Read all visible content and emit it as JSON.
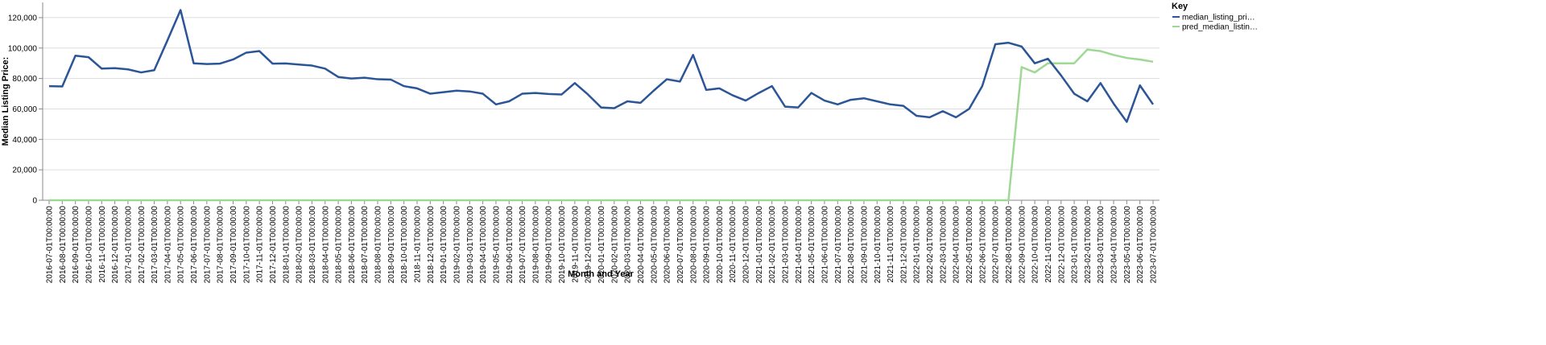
{
  "chart_data": {
    "type": "line",
    "x_label": "Month and Year",
    "y_label": "Median Listing Price:",
    "legend_title": "Key",
    "legend_position": "right",
    "grid": true,
    "categories": [
      "2016-07-01T00:00:00",
      "2016-08-01T00:00:00",
      "2016-09-01T00:00:00",
      "2016-10-01T00:00:00",
      "2016-11-01T00:00:00",
      "2016-12-01T00:00:00",
      "2017-01-01T00:00:00",
      "2017-02-01T00:00:00",
      "2017-03-01T00:00:00",
      "2017-04-01T00:00:00",
      "2017-05-01T00:00:00",
      "2017-06-01T00:00:00",
      "2017-07-01T00:00:00",
      "2017-08-01T00:00:00",
      "2017-09-01T00:00:00",
      "2017-10-01T00:00:00",
      "2017-11-01T00:00:00",
      "2017-12-01T00:00:00",
      "2018-01-01T00:00:00",
      "2018-02-01T00:00:00",
      "2018-03-01T00:00:00",
      "2018-04-01T00:00:00",
      "2018-05-01T00:00:00",
      "2018-06-01T00:00:00",
      "2018-07-01T00:00:00",
      "2018-08-01T00:00:00",
      "2018-09-01T00:00:00",
      "2018-10-01T00:00:00",
      "2018-11-01T00:00:00",
      "2018-12-01T00:00:00",
      "2019-01-01T00:00:00",
      "2019-02-01T00:00:00",
      "2019-03-01T00:00:00",
      "2019-04-01T00:00:00",
      "2019-05-01T00:00:00",
      "2019-06-01T00:00:00",
      "2019-07-01T00:00:00",
      "2019-08-01T00:00:00",
      "2019-09-01T00:00:00",
      "2019-10-01T00:00:00",
      "2019-11-01T00:00:00",
      "2019-12-01T00:00:00",
      "2020-01-01T00:00:00",
      "2020-02-01T00:00:00",
      "2020-03-01T00:00:00",
      "2020-04-01T00:00:00",
      "2020-05-01T00:00:00",
      "2020-06-01T00:00:00",
      "2020-07-01T00:00:00",
      "2020-08-01T00:00:00",
      "2020-09-01T00:00:00",
      "2020-10-01T00:00:00",
      "2020-11-01T00:00:00",
      "2020-12-01T00:00:00",
      "2021-01-01T00:00:00",
      "2021-02-01T00:00:00",
      "2021-03-01T00:00:00",
      "2021-04-01T00:00:00",
      "2021-05-01T00:00:00",
      "2021-06-01T00:00:00",
      "2021-07-01T00:00:00",
      "2021-08-01T00:00:00",
      "2021-09-01T00:00:00",
      "2021-10-01T00:00:00",
      "2021-11-01T00:00:00",
      "2021-12-01T00:00:00",
      "2022-01-01T00:00:00",
      "2022-02-01T00:00:00",
      "2022-03-01T00:00:00",
      "2022-04-01T00:00:00",
      "2022-05-01T00:00:00",
      "2022-06-01T00:00:00",
      "2022-07-01T00:00:00",
      "2022-08-01T00:00:00",
      "2022-09-01T00:00:00",
      "2022-10-01T00:00:00",
      "2022-11-01T00:00:00",
      "2022-12-01T00:00:00",
      "2023-01-01T00:00:00",
      "2023-02-01T00:00:00",
      "2023-03-01T00:00:00",
      "2023-04-01T00:00:00",
      "2023-05-01T00:00:00",
      "2023-06-01T00:00:00",
      "2023-07-01T00:00:00"
    ],
    "series": [
      {
        "name": "median_listing_pri…",
        "color": "#2b5597",
        "values": [
          75000,
          74800,
          95000,
          94000,
          86500,
          86800,
          86000,
          84000,
          85500,
          105000,
          125000,
          90000,
          89500,
          89800,
          92500,
          97000,
          98000,
          89800,
          89900,
          89200,
          88500,
          86500,
          81000,
          80000,
          80500,
          79500,
          79300,
          75000,
          73500,
          70000,
          71000,
          72000,
          71500,
          70000,
          63000,
          65000,
          70000,
          70500,
          69800,
          69500,
          77000,
          69500,
          61000,
          60500,
          65000,
          64000,
          72000,
          79500,
          78000,
          95500,
          72500,
          73500,
          69000,
          65500,
          70500,
          75000,
          61500,
          61000,
          70500,
          65500,
          63000,
          66000,
          67000,
          65000,
          63000,
          62000,
          55500,
          54500,
          58500,
          54500,
          60000,
          75000,
          102500,
          103500,
          101000,
          90000,
          93000,
          82000,
          70000,
          65000,
          77000,
          63500,
          51500,
          75500,
          63000
        ]
      },
      {
        "name": "pred_median_listin…",
        "color": "#9fd894",
        "values": [
          0,
          0,
          0,
          0,
          0,
          0,
          0,
          0,
          0,
          0,
          0,
          0,
          0,
          0,
          0,
          0,
          0,
          0,
          0,
          0,
          0,
          0,
          0,
          0,
          0,
          0,
          0,
          0,
          0,
          0,
          0,
          0,
          0,
          0,
          0,
          0,
          0,
          0,
          0,
          0,
          0,
          0,
          0,
          0,
          0,
          0,
          0,
          0,
          0,
          0,
          0,
          0,
          0,
          0,
          0,
          0,
          0,
          0,
          0,
          0,
          0,
          0,
          0,
          0,
          0,
          0,
          0,
          0,
          0,
          0,
          0,
          0,
          0,
          0,
          87500,
          84000,
          90000,
          90000,
          90000,
          99000,
          98000,
          95500,
          93500,
          92500,
          91000
        ]
      }
    ],
    "ylim": [
      0,
      130000
    ],
    "yticks": [
      0,
      {
        "value": 20000,
        "label": "20,000"
      },
      {
        "value": 40000,
        "label": "40,000"
      },
      {
        "value": 60000,
        "label": "60,000"
      },
      {
        "value": 80000,
        "label": "80,000"
      },
      {
        "value": 100000,
        "label": "100,000"
      },
      {
        "value": 120000,
        "label": "120,000"
      }
    ]
  }
}
